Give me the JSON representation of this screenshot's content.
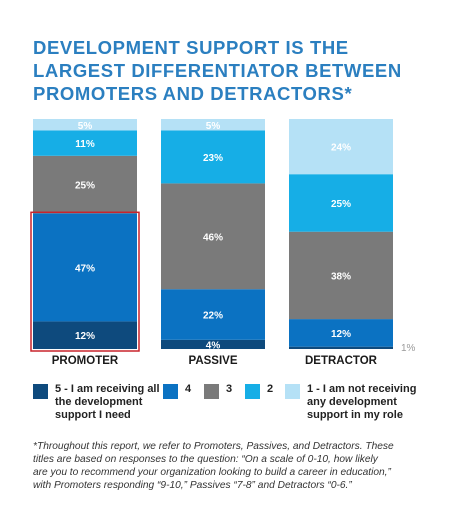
{
  "title_lines": [
    "DEVELOPMENT SUPPORT IS THE",
    "LARGEST DIFFERENTIATOR BETWEEN",
    "PROMOTERS AND DETRACTORS*"
  ],
  "chart_data": {
    "type": "bar",
    "stacked": true,
    "normalized": true,
    "categories": [
      "PROMOTER",
      "PASSIVE",
      "DETRACTOR"
    ],
    "series": [
      {
        "name": "5 - I am receiving all the development support I need",
        "key": "s5",
        "color": "#0e4a7d",
        "values": [
          12,
          4,
          1
        ],
        "labels": [
          "12%",
          "4%",
          "1%"
        ]
      },
      {
        "name": "4",
        "key": "s4",
        "color": "#0b72c2",
        "values": [
          47,
          22,
          12
        ],
        "labels": [
          "47%",
          "22%",
          "12%"
        ]
      },
      {
        "name": "3",
        "key": "s3",
        "color": "#7a7a7a",
        "values": [
          25,
          46,
          38
        ],
        "labels": [
          "25%",
          "46%",
          "38%"
        ]
      },
      {
        "name": "2",
        "key": "s2",
        "color": "#16aee6",
        "values": [
          11,
          23,
          25
        ],
        "labels": [
          "11%",
          "23%",
          "25%"
        ]
      },
      {
        "name": "1 - I am not receiving any development support in my role",
        "key": "s1",
        "color": "#b5e1f6",
        "values": [
          5,
          5,
          24
        ],
        "labels": [
          "5%",
          "5%",
          "24%"
        ]
      }
    ],
    "highlight": {
      "category": "PROMOTER",
      "series": [
        "s5",
        "s4"
      ],
      "color": "#c8242c"
    },
    "ylim": [
      0,
      100
    ]
  },
  "legend": [
    {
      "key": "s5",
      "lines": [
        "5 - I am receiving all",
        "the development",
        "support I need"
      ]
    },
    {
      "key": "s4",
      "lines": [
        "4"
      ]
    },
    {
      "key": "s3",
      "lines": [
        "3"
      ]
    },
    {
      "key": "s2",
      "lines": [
        "2"
      ]
    },
    {
      "key": "s1",
      "lines": [
        "1 - I am not receiving",
        "any development",
        "support in my role"
      ]
    }
  ],
  "footnote_lines": [
    "*Throughout this report, we refer to Promoters, Passives, and Detractors.  These",
    "titles are based on responses to the question: “On a scale of 0-10, how likely",
    "are you to recommend your organization looking to build a career in education,”",
    "with Promoters responding “9-10,” Passives “7-8” and Detractors “0-6.”"
  ]
}
